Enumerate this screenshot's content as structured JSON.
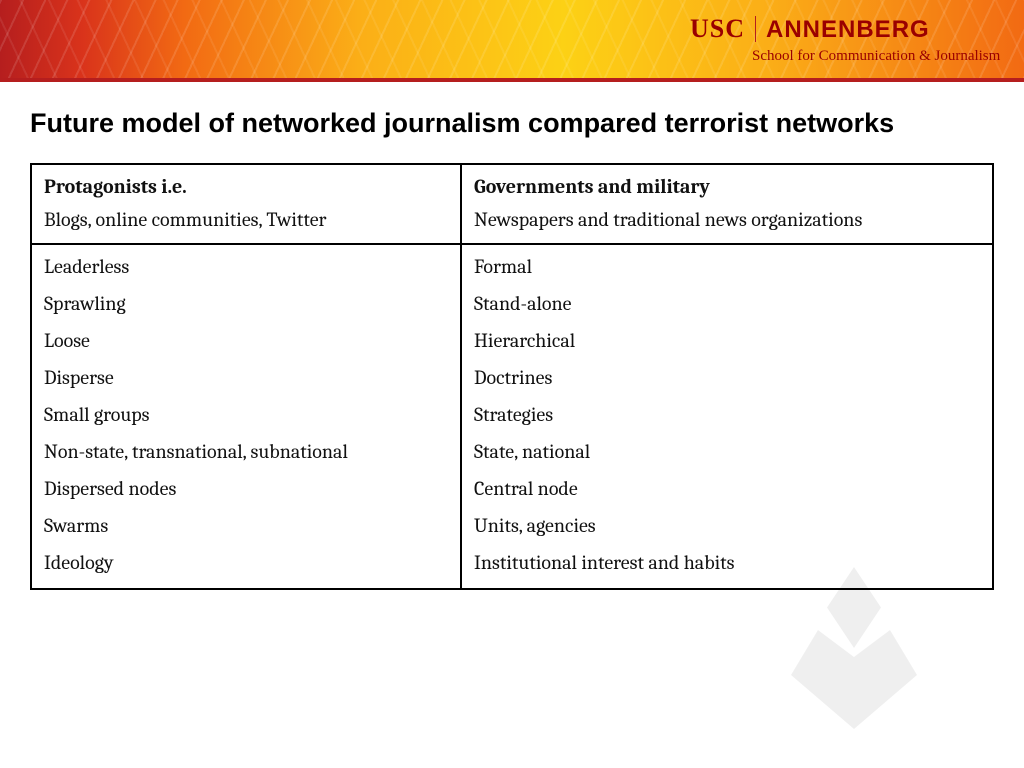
{
  "banner": {
    "usc": "USC",
    "annenberg": "ANNENBERG",
    "subline": "School for Communication & Journalism",
    "usc_color": "#9a0000",
    "annenberg_color": "#9a0000",
    "subline_color": "#9a0000",
    "gradient_colors": [
      "#b51e1e",
      "#d9331b",
      "#f26a13",
      "#fbae17",
      "#fcd115"
    ],
    "strip_color": "#b51e1e"
  },
  "title": "Future model of networked journalism compared terrorist networks",
  "table": {
    "border_color": "#000000",
    "font_family": "Cambria, Georgia, serif",
    "font_size_pt": 15,
    "columns": [
      {
        "header_title": "Protagonists i.e.",
        "header_sub": "Blogs, online communities, Twitter",
        "attrs": [
          "Leaderless",
          "Sprawling",
          "Loose",
          "Disperse",
          "Small groups",
          "Non-state, transnational, subnational",
          "Dispersed nodes",
          "Swarms",
          "Ideology"
        ]
      },
      {
        "header_title": "Governments and military",
        "header_sub": "Newspapers and traditional news organizations",
        "attrs": [
          "Formal",
          "Stand-alone",
          "Hierarchical",
          "Doctrines",
          "Strategies",
          "State, national",
          "Central node",
          "Units, agencies",
          "Institutional interest and habits"
        ]
      }
    ]
  }
}
